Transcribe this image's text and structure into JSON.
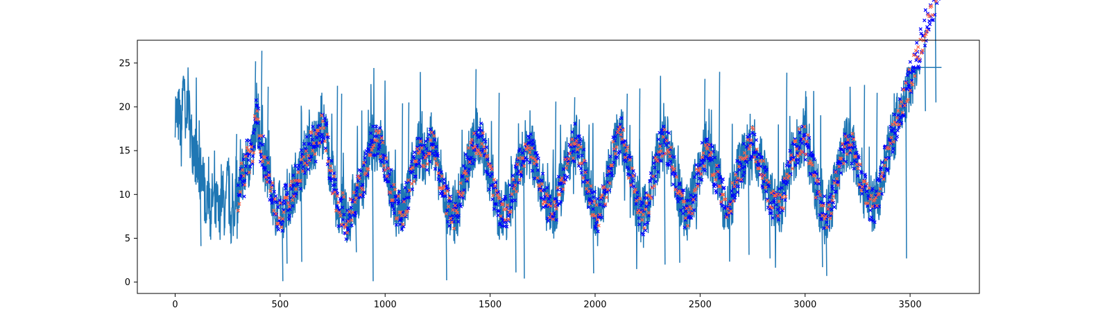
{
  "chart_data": {
    "type": "line",
    "title": "",
    "xlabel": "",
    "ylabel": "",
    "xlim": [
      -180,
      3830
    ],
    "ylim": [
      -1.3,
      27.6
    ],
    "x_ticks": [
      0,
      500,
      1000,
      1500,
      2000,
      2500,
      3000,
      3500
    ],
    "y_ticks": [
      0,
      5,
      10,
      15,
      20,
      25
    ],
    "x_tick_labels": [
      "0",
      "500",
      "1000",
      "1500",
      "2000",
      "2500",
      "3000",
      "3500"
    ],
    "y_tick_labels": [
      "0",
      "5",
      "10",
      "15",
      "20",
      "25"
    ],
    "grid": false,
    "legend": "none",
    "series": [
      {
        "kind": "line",
        "color": "#1f77b4",
        "x_start": 0,
        "x_end": 3650,
        "x_step": 10,
        "y": [
          20.0,
          18.5,
          19.2,
          16.1,
          24.9,
          15.4,
          22.7,
          17.8,
          16.2,
          15.1,
          14.3,
          12.6,
          11.9,
          13.8,
          10.2,
          9.6,
          11.4,
          8.1,
          9.8,
          7.7,
          8.9,
          6.8,
          10.4,
          9.3,
          7.2,
          11.6,
          8.6,
          6.9,
          7.8,
          12.1,
          9.5,
          10.8,
          13.1,
          11.2,
          14.6,
          13.2,
          15.4,
          14.1,
          17.9,
          19.8,
          16.5,
          15.2,
          14.7,
          13.5,
          12.3,
          11.4,
          10.2,
          9.1,
          8.3,
          7.9,
          8.6,
          7.4,
          8.8,
          9.7,
          8.5,
          10.4,
          9.9,
          11.2,
          12.6,
          11.8,
          12.9,
          13.7,
          14.2,
          14.8,
          15.3,
          15.9,
          16.1,
          15.7,
          16.8,
          17.3,
          18.6,
          17.2,
          16.4,
          14.8,
          12.7,
          11.6,
          10.1,
          9.2,
          8.3,
          7.6,
          8.9,
          7.1,
          6.5,
          7.8,
          8.4,
          9.6,
          8.7,
          10.3,
          11.1,
          10.8,
          12.2,
          13.5,
          14.3,
          15.2,
          15.8,
          16.4,
          15.9,
          16.6,
          15.3,
          14.8,
          13.6,
          12.4,
          11.2,
          10.6,
          9.7,
          8.9,
          8.1,
          8.6,
          7.7,
          8.3,
          9.2,
          9.9,
          11.5,
          12.3,
          13.1,
          14.2,
          14.9,
          15.6,
          14.4,
          13.6,
          14.8,
          15.5,
          16.2,
          15.4,
          14.7,
          13.3,
          12.1,
          11.4,
          10.2,
          9.5,
          8.6,
          7.9,
          8.4,
          7.2,
          8.1,
          9.1,
          10.2,
          11.3,
          12.4,
          13.2,
          14.1,
          14.8,
          15.3,
          15.9,
          16.4,
          15.8,
          16.1,
          15.2,
          14.1,
          13.4,
          12.2,
          11.5,
          10.3,
          9.4,
          8.6,
          8.1,
          7.5,
          8.2,
          7.8,
          8.9,
          9.7,
          10.4,
          11.3,
          12.4,
          13.1,
          13.9,
          14.6,
          15.2,
          15.7,
          15.1,
          14.6,
          13.8,
          13.1,
          12.2,
          11.4,
          10.6,
          9.7,
          8.8,
          8.2,
          7.6,
          8.1,
          8.7,
          9.5,
          10.3,
          11.2,
          12.1,
          12.9,
          13.7,
          14.5,
          15.1,
          15.8,
          16.2,
          15.4,
          14.9,
          13.8,
          12.7,
          11.6,
          10.5,
          9.6,
          8.7,
          8.1,
          7.5,
          7.9,
          8.6,
          9.4,
          10.5,
          11.6,
          12.7,
          13.8,
          14.9,
          15.7,
          16.3,
          17.1,
          16.4,
          15.6,
          14.7,
          13.5,
          12.3,
          11.2,
          10.1,
          9.2,
          8.4,
          7.8,
          7.3,
          7.9,
          8.8,
          9.9,
          11.1,
          12.2,
          13.4,
          14.5,
          15.3,
          15.9,
          16.5,
          15.8,
          15.1,
          14.2,
          13.3,
          12.1,
          11.2,
          10.1,
          9.3,
          8.6,
          8.1,
          7.8,
          8.4,
          9.2,
          10.1,
          11.3,
          12.4,
          13.1,
          13.9,
          14.6,
          15.2,
          14.7,
          14.1,
          13.5,
          12.8,
          11.9,
          11.2,
          10.4,
          9.6,
          8.9,
          8.4,
          8.9,
          9.6,
          10.4,
          11.2,
          12.1,
          12.9,
          13.5,
          14.2,
          14.8,
          15.3,
          15.8,
          16.1,
          15.6,
          14.9,
          14.2,
          13.3,
          12.4,
          11.6,
          10.8,
          10.1,
          9.5,
          9.1,
          8.7,
          8.4,
          8.8,
          9.3,
          10.1,
          11.2,
          12.3,
          13.2,
          14.1,
          14.8,
          15.4,
          15.9,
          16.2,
          16.4,
          16.1,
          15.5,
          14.7,
          13.6,
          12.4,
          11.3,
          10.2,
          9.4,
          8.7,
          8.2,
          7.6,
          7.9,
          8.6,
          9.5,
          10.6,
          11.8,
          12.9,
          13.7,
          14.4,
          15.1,
          15.6,
          16.2,
          15.8,
          15.1,
          14.2,
          13.1,
          12.3,
          11.4,
          10.7,
          10.1,
          9.6,
          9.2,
          8.9,
          8.7,
          9.3,
          10.2,
          11.4,
          12.6,
          13.5,
          14.3
        ],
        "y_spikes": [
          [
            120,
            4.1
          ],
          [
            290,
            16.9
          ],
          [
            380,
            25.2
          ],
          [
            410,
            26.4
          ],
          [
            440,
            22.3
          ],
          [
            510,
            0.1
          ],
          [
            530,
            2.1
          ],
          [
            600,
            2.3
          ],
          [
            770,
            22.4
          ],
          [
            790,
            21.5
          ],
          [
            860,
            3.4
          ],
          [
            940,
            0.1
          ],
          [
            1080,
            20.4
          ],
          [
            1110,
            20.5
          ],
          [
            1290,
            0.2
          ],
          [
            1430,
            24.3
          ],
          [
            1540,
            21.6
          ],
          [
            1620,
            1.1
          ],
          [
            1660,
            0.4
          ],
          [
            1810,
            20.6
          ],
          [
            1900,
            21.1
          ],
          [
            1990,
            1.0
          ],
          [
            2150,
            21.5
          ],
          [
            2210,
            22.1
          ],
          [
            2330,
            2.0
          ],
          [
            2400,
            2.2
          ],
          [
            2520,
            23.2
          ],
          [
            2590,
            24.0
          ],
          [
            2730,
            3.1
          ],
          [
            2830,
            2.7
          ],
          [
            2910,
            23.9
          ],
          [
            3000,
            21.8
          ],
          [
            3080,
            1.7
          ],
          [
            3100,
            0.7
          ],
          [
            3280,
            22.5
          ],
          [
            3340,
            21.6
          ],
          [
            3480,
            2.7
          ],
          [
            3570,
            19.5
          ],
          [
            3620,
            20.5
          ]
        ]
      },
      {
        "kind": "scatter",
        "color": "#0000ff",
        "marker": "x",
        "x_start": 300,
        "x_end": 3650
      },
      {
        "kind": "scatter",
        "color": "#ff6347",
        "marker": "x",
        "x_start": 300,
        "x_end": 3650
      }
    ]
  }
}
